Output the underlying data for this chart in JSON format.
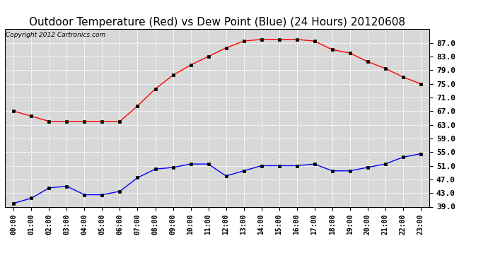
{
  "title": "Outdoor Temperature (Red) vs Dew Point (Blue) (24 Hours) 20120608",
  "copyright_text": "Copyright 2012 Cartronics.com",
  "x_labels": [
    "00:00",
    "01:00",
    "02:00",
    "03:00",
    "04:00",
    "05:00",
    "06:00",
    "07:00",
    "08:00",
    "09:00",
    "10:00",
    "11:00",
    "12:00",
    "13:00",
    "14:00",
    "15:00",
    "16:00",
    "17:00",
    "18:00",
    "19:00",
    "20:00",
    "21:00",
    "22:00",
    "23:00"
  ],
  "temp_red": [
    67.0,
    65.5,
    64.0,
    64.0,
    64.0,
    64.0,
    64.0,
    68.5,
    73.5,
    77.5,
    80.5,
    83.0,
    85.5,
    87.5,
    88.0,
    88.0,
    88.0,
    87.5,
    85.0,
    84.0,
    81.5,
    79.5,
    77.0,
    75.0
  ],
  "dew_blue": [
    40.0,
    41.5,
    44.5,
    45.0,
    42.5,
    42.5,
    43.5,
    47.5,
    50.0,
    50.5,
    51.5,
    51.5,
    48.0,
    49.5,
    51.0,
    51.0,
    51.0,
    51.5,
    49.5,
    49.5,
    50.5,
    51.5,
    53.5,
    54.5
  ],
  "ylim": [
    39.0,
    91.0
  ],
  "y_ticks": [
    39.0,
    43.0,
    47.0,
    51.0,
    55.0,
    59.0,
    63.0,
    67.0,
    71.0,
    75.0,
    79.0,
    83.0,
    87.0
  ],
  "bg_color": "#ffffff",
  "plot_bg": "#d8d8d8",
  "grid_color": "#ffffff",
  "red_color": "#ff0000",
  "blue_color": "#0000ff",
  "title_fontsize": 11,
  "copyright_fontsize": 6.5,
  "tick_fontsize": 8,
  "xtick_fontsize": 7
}
